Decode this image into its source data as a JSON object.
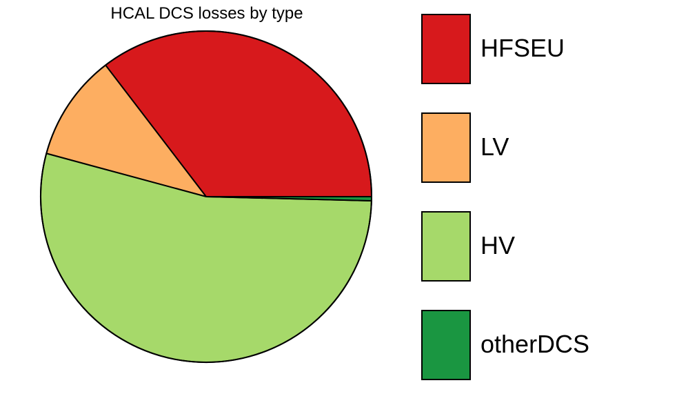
{
  "chart_data": {
    "type": "pie",
    "title": "HCAL DCS losses by type",
    "categories": [
      "HFSEU",
      "LV",
      "HV",
      "otherDCS"
    ],
    "values": [
      35.4,
      10.4,
      53.8,
      0.4
    ],
    "colors": [
      "#d7191c",
      "#fdae61",
      "#a6d96a",
      "#1a9641"
    ],
    "legend_position": "right"
  }
}
